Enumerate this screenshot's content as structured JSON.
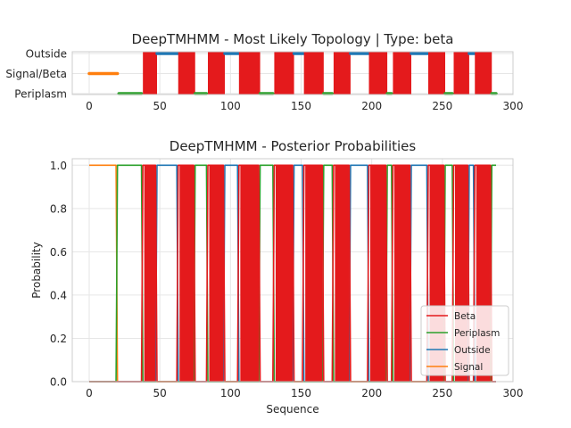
{
  "chart_data": [
    {
      "type": "line",
      "title": "DeepTMHMM - Most Likely Topology | Type: beta",
      "xlabel": "",
      "ylabel": "",
      "xlim": [
        -12,
        300
      ],
      "x_ticks": [
        "0",
        "50",
        "100",
        "150",
        "200",
        "250",
        "300"
      ],
      "y_categories": [
        "Periplasm",
        "Signal/Beta",
        "Outside"
      ],
      "grid": true,
      "segments": [
        {
          "state": "Signal",
          "start": 0,
          "end": 20,
          "color": "#ff7f0e"
        },
        {
          "state": "Periplasm",
          "start": 21,
          "end": 37,
          "color": "#2ca02c"
        },
        {
          "state": "Beta",
          "start": 38,
          "end": 48,
          "color": "#e41a1c"
        },
        {
          "state": "Outside",
          "start": 48,
          "end": 63,
          "color": "#1f77b4"
        },
        {
          "state": "Beta",
          "start": 63,
          "end": 75,
          "color": "#e41a1c"
        },
        {
          "state": "Periplasm",
          "start": 75,
          "end": 83,
          "color": "#2ca02c"
        },
        {
          "state": "Beta",
          "start": 84,
          "end": 96,
          "color": "#e41a1c"
        },
        {
          "state": "Outside",
          "start": 96,
          "end": 106,
          "color": "#1f77b4"
        },
        {
          "state": "Beta",
          "start": 106,
          "end": 121,
          "color": "#e41a1c"
        },
        {
          "state": "Periplasm",
          "start": 121,
          "end": 130,
          "color": "#2ca02c"
        },
        {
          "state": "Beta",
          "start": 131,
          "end": 145,
          "color": "#e41a1c"
        },
        {
          "state": "Outside",
          "start": 145,
          "end": 152,
          "color": "#1f77b4"
        },
        {
          "state": "Beta",
          "start": 152,
          "end": 166,
          "color": "#e41a1c"
        },
        {
          "state": "Periplasm",
          "start": 166,
          "end": 172,
          "color": "#2ca02c"
        },
        {
          "state": "Beta",
          "start": 173,
          "end": 185,
          "color": "#e41a1c"
        },
        {
          "state": "Outside",
          "start": 185,
          "end": 198,
          "color": "#1f77b4"
        },
        {
          "state": "Beta",
          "start": 198,
          "end": 211,
          "color": "#e41a1c"
        },
        {
          "state": "Periplasm",
          "start": 211,
          "end": 214,
          "color": "#2ca02c"
        },
        {
          "state": "Beta",
          "start": 215,
          "end": 228,
          "color": "#e41a1c"
        },
        {
          "state": "Outside",
          "start": 228,
          "end": 240,
          "color": "#1f77b4"
        },
        {
          "state": "Beta",
          "start": 240,
          "end": 252,
          "color": "#e41a1c"
        },
        {
          "state": "Periplasm",
          "start": 252,
          "end": 257,
          "color": "#2ca02c"
        },
        {
          "state": "Beta",
          "start": 258,
          "end": 269,
          "color": "#e41a1c"
        },
        {
          "state": "Outside",
          "start": 269,
          "end": 273,
          "color": "#1f77b4"
        },
        {
          "state": "Beta",
          "start": 273,
          "end": 285,
          "color": "#e41a1c"
        },
        {
          "state": "Periplasm",
          "start": 285,
          "end": 288,
          "color": "#2ca02c"
        }
      ]
    },
    {
      "type": "line",
      "title": "DeepTMHMM - Posterior Probabilities",
      "xlabel": "Sequence",
      "ylabel": "Probability",
      "xlim": [
        -12,
        300
      ],
      "ylim": [
        0,
        1.03
      ],
      "x_ticks": [
        "0",
        "50",
        "100",
        "150",
        "200",
        "250",
        "300"
      ],
      "y_ticks": [
        "0.0",
        "0.2",
        "0.4",
        "0.6",
        "0.8",
        "1.0"
      ],
      "grid": true,
      "legend_position": "bottom-right",
      "series": [
        {
          "name": "Beta",
          "color": "#e41a1c"
        },
        {
          "name": "Periplasm",
          "color": "#2ca02c"
        },
        {
          "name": "Outside",
          "color": "#1f77b4"
        },
        {
          "name": "Signal",
          "color": "#ff7f0e"
        }
      ],
      "sequence_length": 288
    }
  ]
}
